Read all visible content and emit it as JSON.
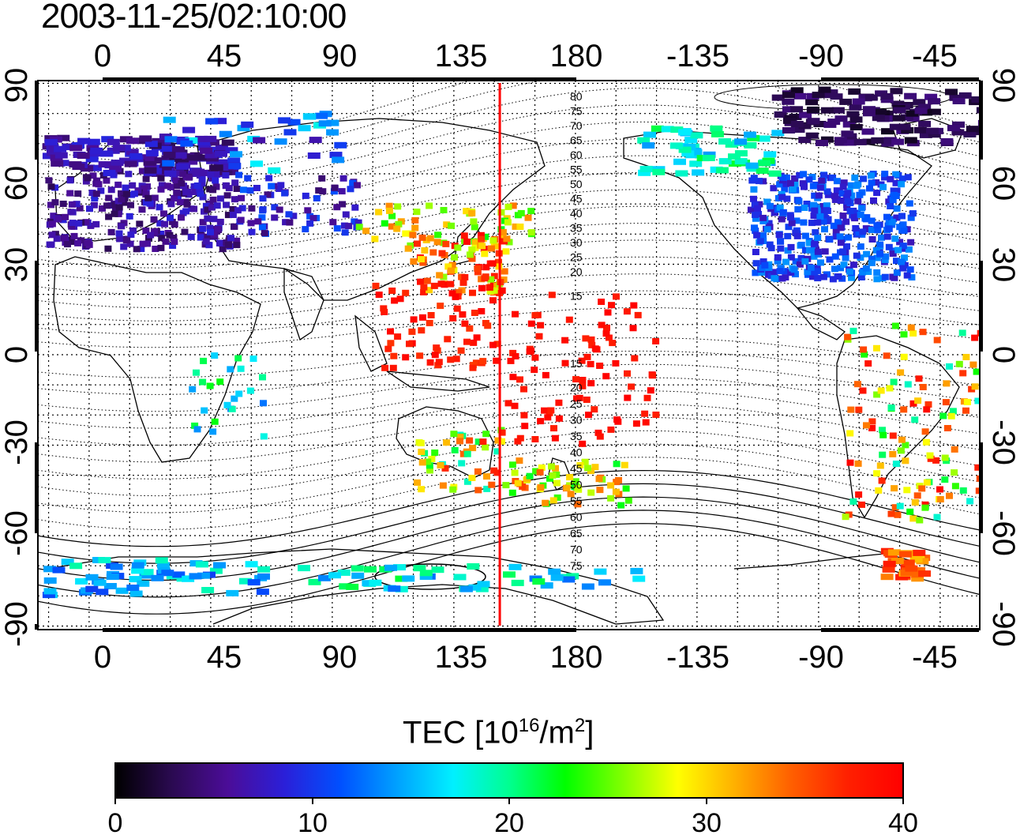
{
  "title": "2003-11-25/02:10:00",
  "map": {
    "lon_ticks": [
      "0",
      "45",
      "90",
      "135",
      "180",
      "-135",
      "-90",
      "-45"
    ],
    "lat_ticks": [
      "90",
      "60",
      "30",
      "0",
      "-30",
      "-60",
      "-90"
    ],
    "terminator_longitude": 147,
    "contour_labels_north": [
      "80",
      "75",
      "70",
      "65",
      "60",
      "55",
      "50",
      "45",
      "40",
      "35",
      "30",
      "25",
      "20",
      "15"
    ],
    "contour_labels_south": [
      "15",
      "20",
      "25",
      "30",
      "35",
      "40",
      "45",
      "50",
      "55",
      "60",
      "65",
      "70",
      "75"
    ]
  },
  "colorbar": {
    "title_main": "TEC  [10",
    "title_exp1": "16",
    "title_mid": "/m",
    "title_exp2": "2",
    "title_end": "]",
    "ticks": [
      "0",
      "10",
      "20",
      "30",
      "40"
    ],
    "range": [
      0,
      40
    ],
    "colors": [
      "#000000",
      "#2a0a50",
      "#4b0d98",
      "#2b1fd8",
      "#0050ff",
      "#00a0ff",
      "#00f0ff",
      "#00ff90",
      "#00ff00",
      "#80ff00",
      "#ffff00",
      "#ffb000",
      "#ff6000",
      "#ff2000",
      "#ff0000"
    ]
  }
}
